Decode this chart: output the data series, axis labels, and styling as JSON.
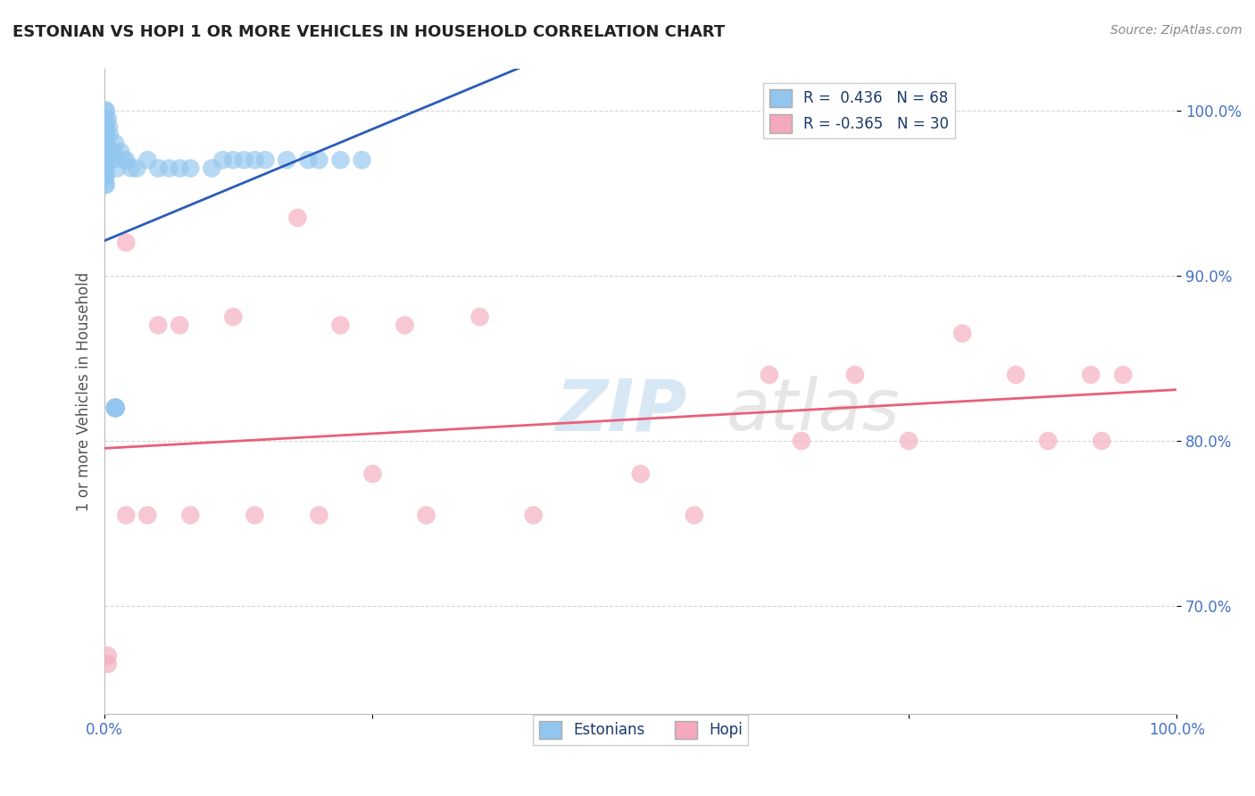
{
  "title": "ESTONIAN VS HOPI 1 OR MORE VEHICLES IN HOUSEHOLD CORRELATION CHART",
  "source_text": "Source: ZipAtlas.com",
  "ylabel": "1 or more Vehicles in Household",
  "xlim": [
    0.0,
    1.0
  ],
  "ylim": [
    0.635,
    1.025
  ],
  "yticks": [
    0.7,
    0.8,
    0.9,
    1.0
  ],
  "ytick_labels": [
    "70.0%",
    "80.0%",
    "90.0%",
    "100.0%"
  ],
  "watermark_zip": "ZIP",
  "watermark_atlas": "atlas",
  "blue_color": "#93C6EE",
  "pink_color": "#F4AABC",
  "blue_line_color": "#2B5CB8",
  "pink_line_color": "#E8607A",
  "title_color": "#222222",
  "axis_label_color": "#4472C4",
  "grid_color": "#CCCCCC",
  "estonian_x": [
    0.001,
    0.001,
    0.001,
    0.001,
    0.001,
    0.001,
    0.001,
    0.001,
    0.001,
    0.001,
    0.001,
    0.001,
    0.001,
    0.001,
    0.001,
    0.001,
    0.001,
    0.001,
    0.001,
    0.001,
    0.003,
    0.004,
    0.005,
    0.006,
    0.007,
    0.008,
    0.01,
    0.012,
    0.015,
    0.018,
    0.02,
    0.025,
    0.03,
    0.04,
    0.05,
    0.06,
    0.07,
    0.08,
    0.1,
    0.11,
    0.12,
    0.13,
    0.14,
    0.15,
    0.17,
    0.19,
    0.2,
    0.22,
    0.24,
    0.01,
    0.01,
    0.01,
    0.01,
    0.01,
    0.01,
    0.01,
    0.01,
    0.01,
    0.01,
    0.01,
    0.01,
    0.01,
    0.01,
    0.01,
    0.01,
    0.01,
    0.01,
    0.01
  ],
  "estonian_y": [
    1.0,
    0.995,
    0.99,
    0.985,
    0.98,
    0.975,
    0.97,
    0.965,
    0.96,
    0.955,
    0.99,
    0.985,
    0.98,
    0.975,
    0.97,
    0.965,
    0.96,
    0.955,
    0.99,
    1.0,
    0.995,
    0.99,
    0.985,
    0.975,
    0.97,
    0.975,
    0.98,
    0.965,
    0.975,
    0.97,
    0.97,
    0.965,
    0.965,
    0.97,
    0.965,
    0.965,
    0.965,
    0.965,
    0.965,
    0.97,
    0.97,
    0.97,
    0.97,
    0.97,
    0.97,
    0.97,
    0.97,
    0.97,
    0.97,
    0.82,
    0.82,
    0.82,
    0.82,
    0.82,
    0.82,
    0.82,
    0.82,
    0.82,
    0.82,
    0.82,
    0.82,
    0.82,
    0.82,
    0.82,
    0.82,
    0.82,
    0.82,
    0.82
  ],
  "hopi_x": [
    0.02,
    0.05,
    0.07,
    0.12,
    0.18,
    0.22,
    0.28,
    0.35,
    0.5,
    0.62,
    0.7,
    0.8,
    0.85,
    0.92,
    0.95,
    0.02,
    0.08,
    0.14,
    0.2,
    0.25,
    0.3,
    0.4,
    0.55,
    0.65,
    0.75,
    0.88,
    0.93,
    0.003,
    0.04,
    0.003
  ],
  "hopi_y": [
    0.92,
    0.87,
    0.87,
    0.875,
    0.935,
    0.87,
    0.87,
    0.875,
    0.78,
    0.84,
    0.84,
    0.865,
    0.84,
    0.84,
    0.84,
    0.755,
    0.755,
    0.755,
    0.755,
    0.78,
    0.755,
    0.755,
    0.755,
    0.8,
    0.8,
    0.8,
    0.8,
    0.67,
    0.755,
    0.665
  ]
}
